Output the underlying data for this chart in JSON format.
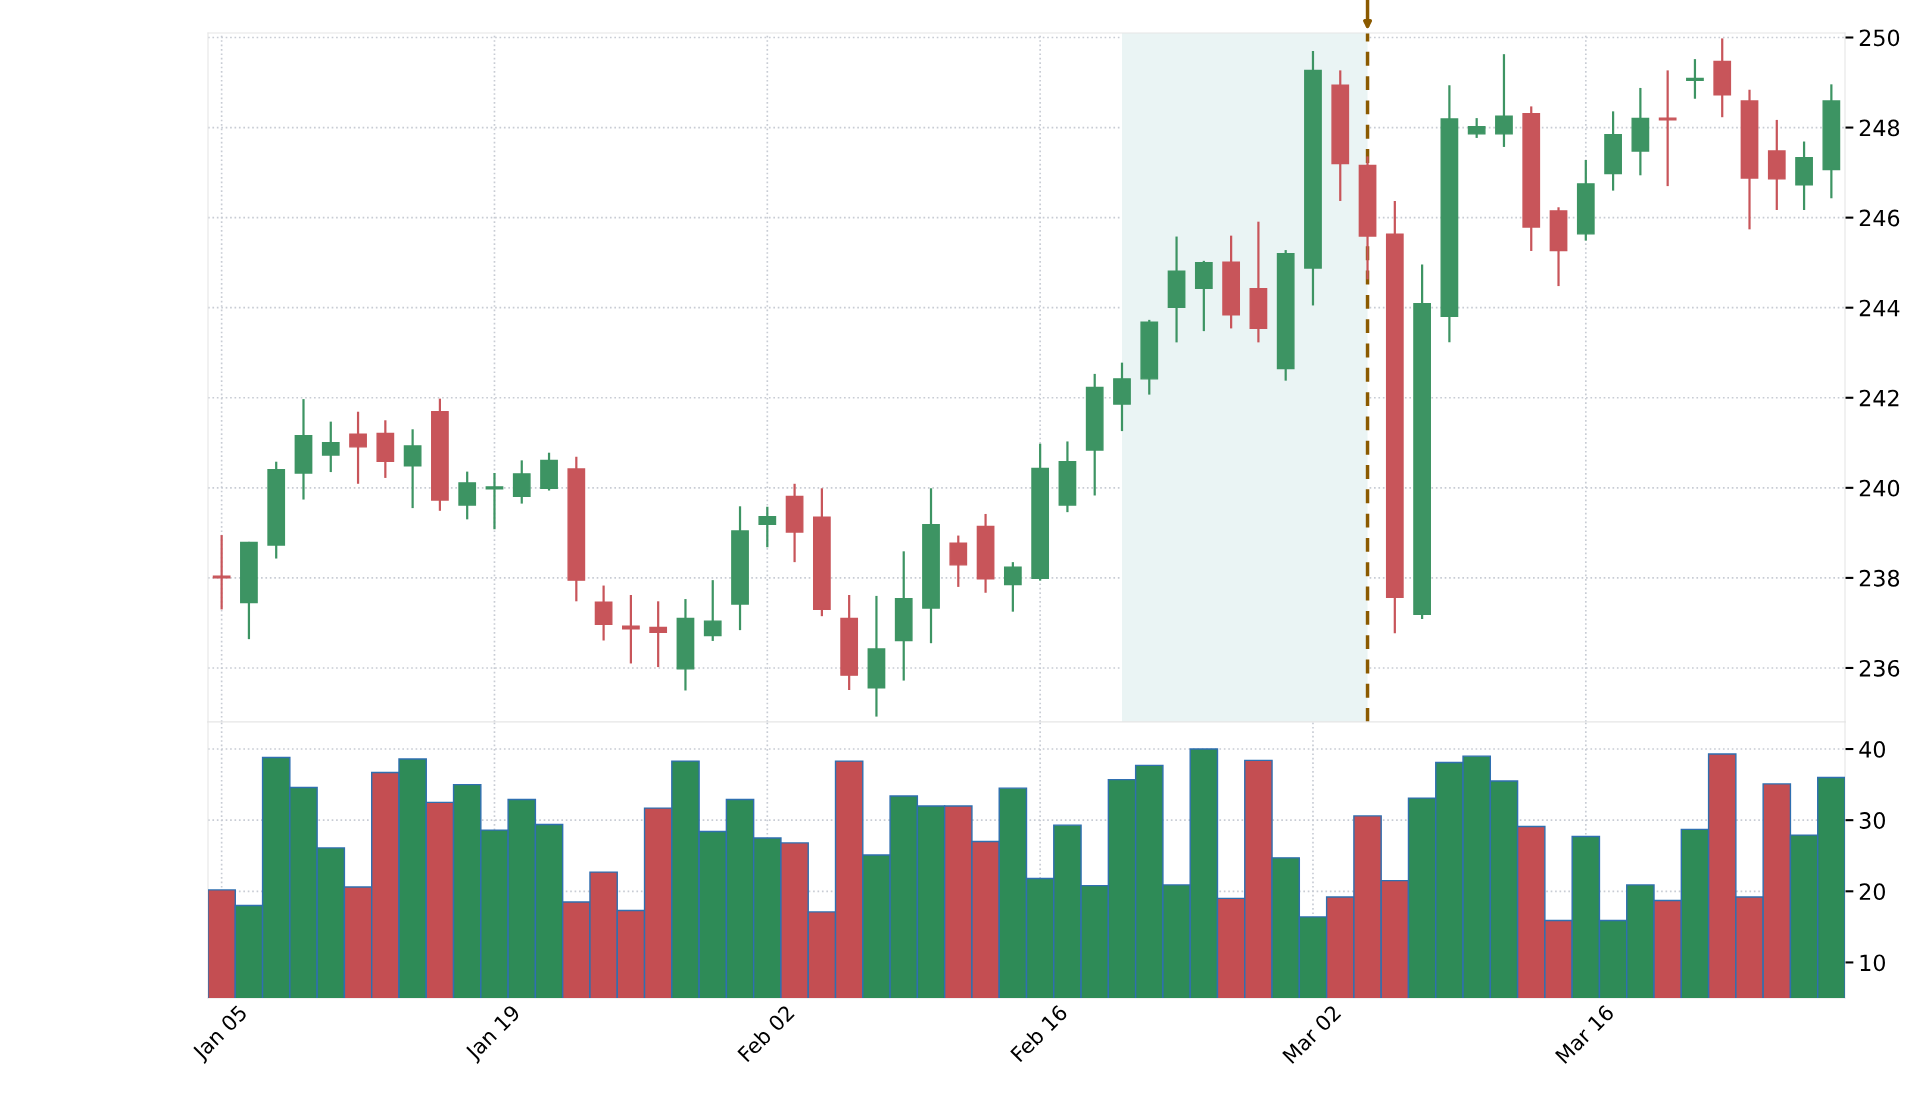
{
  "chart_data": [
    {
      "type": "candlestick",
      "categories": [
        null,
        null,
        null,
        null,
        null,
        null,
        null,
        null,
        null,
        null,
        null,
        null,
        null,
        null,
        null,
        null,
        null,
        null,
        null,
        null,
        null,
        null,
        null,
        null,
        null,
        null,
        null,
        null,
        null,
        null,
        null,
        null,
        null,
        null,
        null,
        null,
        null,
        null,
        null,
        null,
        null,
        null,
        null,
        null,
        null,
        null,
        null,
        null,
        null,
        null,
        null,
        null,
        null,
        null,
        null,
        null,
        null,
        null,
        null,
        null
      ],
      "ohlc": [
        [
          238.02,
          238.95,
          237.3,
          238.0
        ],
        [
          237.45,
          238.8,
          236.64,
          238.79
        ],
        [
          238.73,
          240.58,
          238.43,
          240.4
        ],
        [
          240.33,
          241.97,
          239.74,
          241.16
        ],
        [
          240.73,
          241.47,
          240.35,
          241.0
        ],
        [
          241.19,
          241.69,
          240.09,
          240.91
        ],
        [
          241.21,
          241.5,
          240.22,
          240.59
        ],
        [
          240.49,
          241.3,
          239.55,
          240.93
        ],
        [
          241.69,
          241.98,
          239.49,
          239.73
        ],
        [
          239.62,
          240.36,
          239.3,
          240.11
        ],
        [
          239.98,
          240.33,
          239.08,
          240.02
        ],
        [
          239.81,
          240.61,
          239.65,
          240.31
        ],
        [
          239.99,
          240.78,
          239.94,
          240.61
        ],
        [
          240.42,
          240.69,
          237.48,
          237.95
        ],
        [
          237.46,
          237.83,
          236.61,
          236.97
        ],
        [
          236.93,
          237.62,
          236.1,
          236.87
        ],
        [
          236.9,
          237.48,
          236.02,
          236.79
        ],
        [
          235.98,
          237.53,
          235.5,
          237.1
        ],
        [
          236.72,
          237.95,
          236.6,
          237.04
        ],
        [
          237.42,
          239.59,
          236.84,
          239.04
        ],
        [
          239.19,
          239.58,
          238.68,
          239.36
        ],
        [
          239.81,
          240.09,
          238.35,
          239.02
        ],
        [
          239.35,
          239.99,
          237.15,
          237.3
        ],
        [
          237.1,
          237.62,
          235.51,
          235.84
        ],
        [
          235.56,
          237.6,
          234.92,
          236.42
        ],
        [
          236.61,
          238.59,
          235.72,
          237.54
        ],
        [
          237.33,
          239.99,
          236.55,
          239.18
        ],
        [
          238.77,
          238.94,
          237.8,
          238.29
        ],
        [
          239.14,
          239.42,
          237.67,
          237.98
        ],
        [
          237.85,
          238.35,
          237.25,
          238.24
        ],
        [
          237.99,
          240.98,
          237.94,
          240.43
        ],
        [
          239.62,
          241.03,
          239.46,
          240.58
        ],
        [
          240.84,
          242.53,
          239.83,
          242.23
        ],
        [
          241.86,
          242.78,
          241.26,
          242.42
        ],
        [
          242.42,
          243.73,
          242.07,
          243.68
        ],
        [
          244.01,
          245.58,
          243.23,
          244.81
        ],
        [
          244.43,
          245.04,
          243.48,
          245.0
        ],
        [
          245.01,
          245.6,
          243.54,
          243.84
        ],
        [
          244.42,
          245.91,
          243.23,
          243.54
        ],
        [
          242.65,
          245.28,
          242.38,
          245.2
        ],
        [
          244.88,
          249.7,
          244.05,
          249.27
        ],
        [
          248.94,
          249.27,
          246.37,
          247.2
        ],
        [
          247.16,
          247.36,
          244.63,
          245.59
        ],
        [
          245.63,
          246.37,
          236.77,
          237.57
        ],
        [
          237.19,
          244.96,
          237.09,
          244.09
        ],
        [
          243.81,
          248.94,
          243.23,
          248.19
        ],
        [
          247.86,
          248.21,
          247.77,
          248.02
        ],
        [
          247.86,
          249.63,
          247.57,
          248.25
        ],
        [
          248.31,
          248.47,
          245.26,
          245.79
        ],
        [
          246.15,
          246.23,
          244.48,
          245.27
        ],
        [
          245.64,
          247.28,
          245.49,
          246.75
        ],
        [
          246.98,
          248.36,
          246.6,
          247.84
        ],
        [
          247.48,
          248.88,
          246.94,
          248.2
        ],
        [
          248.2,
          249.27,
          246.7,
          248.17
        ],
        [
          249.05,
          249.52,
          248.64,
          249.09
        ],
        [
          249.47,
          249.98,
          248.23,
          248.73
        ],
        [
          248.59,
          248.84,
          245.74,
          246.88
        ],
        [
          247.48,
          248.17,
          246.17,
          246.86
        ],
        [
          246.73,
          247.69,
          246.17,
          247.33
        ],
        [
          247.07,
          248.96,
          246.43,
          248.59
        ]
      ],
      "colors": [
        "#c8555a",
        "#3d9463",
        "#3d9463",
        "#3d9463",
        "#3d9463",
        "#c8555a",
        "#c8555a",
        "#3d9463",
        "#c8555a",
        "#3d9463",
        "#3d9463",
        "#3d9463",
        "#3d9463",
        "#c8555a",
        "#c8555a",
        "#c8555a",
        "#c8555a",
        "#3d9463",
        "#3d9463",
        "#3d9463",
        "#3d9463",
        "#c8555a",
        "#c8555a",
        "#c8555a",
        "#3d9463",
        "#3d9463",
        "#3d9463",
        "#c8555a",
        "#c8555a",
        "#3d9463",
        "#3d9463",
        "#3d9463",
        "#3d9463",
        "#3d9463",
        "#3d9463",
        "#3d9463",
        "#3d9463",
        "#c8555a",
        "#c8555a",
        "#3d9463",
        "#3d9463",
        "#c8555a",
        "#c8555a",
        "#c8555a",
        "#3d9463",
        "#3d9463",
        "#3d9463",
        "#3d9463",
        "#c8555a",
        "#c8555a",
        "#3d9463",
        "#3d9463",
        "#3d9463",
        "#c8555a",
        "#3d9463",
        "#c8555a",
        "#c8555a",
        "#c8555a",
        "#3d9463",
        "#3d9463"
      ],
      "ylim": [
        234.8,
        250.1
      ],
      "yticks": [
        236,
        238,
        240,
        242,
        244,
        246,
        248,
        250
      ],
      "grid": true,
      "tick_labels": "y"
    },
    {
      "type": "bar",
      "categories": [
        "Jan 05",
        null,
        null,
        null,
        null,
        null,
        null,
        null,
        null,
        null,
        "Jan 19",
        null,
        null,
        null,
        null,
        null,
        null,
        null,
        null,
        null,
        "Feb 02",
        null,
        null,
        null,
        null,
        null,
        null,
        null,
        null,
        null,
        "Feb 16",
        null,
        null,
        null,
        null,
        null,
        null,
        null,
        null,
        null,
        "Mar 02",
        null,
        null,
        null,
        null,
        null,
        null,
        null,
        null,
        null,
        "Mar 16",
        null,
        null,
        null,
        null,
        null,
        null,
        null,
        null,
        null
      ],
      "values": [
        20.2,
        18.0,
        38.8,
        34.6,
        26.1,
        20.6,
        36.7,
        38.6,
        32.5,
        35.0,
        28.6,
        32.9,
        29.4,
        18.5,
        22.7,
        17.3,
        31.7,
        38.3,
        28.4,
        32.9,
        27.5,
        26.8,
        17.1,
        38.3,
        25.1,
        33.4,
        32.0,
        32.0,
        27.0,
        34.5,
        21.8,
        29.3,
        20.8,
        35.7,
        37.7,
        20.9,
        40.0,
        19.0,
        38.4,
        24.7,
        16.4,
        19.2,
        30.6,
        21.5,
        33.1,
        38.1,
        39.0,
        35.5,
        29.1,
        15.9,
        27.7,
        15.9,
        20.9,
        18.7,
        28.7,
        39.3,
        19.2,
        35.1,
        27.9,
        36.0
      ],
      "colors": [
        "#c44e52",
        "#2e8b57",
        "#2e8b57",
        "#2e8b57",
        "#2e8b57",
        "#c44e52",
        "#c44e52",
        "#2e8b57",
        "#c44e52",
        "#2e8b57",
        "#2e8b57",
        "#2e8b57",
        "#2e8b57",
        "#c44e52",
        "#c44e52",
        "#c44e52",
        "#c44e52",
        "#2e8b57",
        "#2e8b57",
        "#2e8b57",
        "#2e8b57",
        "#c44e52",
        "#c44e52",
        "#c44e52",
        "#2e8b57",
        "#2e8b57",
        "#2e8b57",
        "#c44e52",
        "#c44e52",
        "#2e8b57",
        "#2e8b57",
        "#2e8b57",
        "#2e8b57",
        "#2e8b57",
        "#2e8b57",
        "#2e8b57",
        "#2e8b57",
        "#c44e52",
        "#c44e52",
        "#2e8b57",
        "#2e8b57",
        "#c44e52",
        "#c44e52",
        "#c44e52",
        "#2e8b57",
        "#2e8b57",
        "#2e8b57",
        "#2e8b57",
        "#c44e52",
        "#c44e52",
        "#2e8b57",
        "#2e8b57",
        "#2e8b57",
        "#c44e52",
        "#2e8b57",
        "#c44e52",
        "#c44e52",
        "#c44e52",
        "#2e8b57",
        "#2e8b57"
      ],
      "ylim": [
        5,
        43.8
      ],
      "yticks": [
        10,
        20,
        30,
        40
      ],
      "grid": true
    }
  ]
}
